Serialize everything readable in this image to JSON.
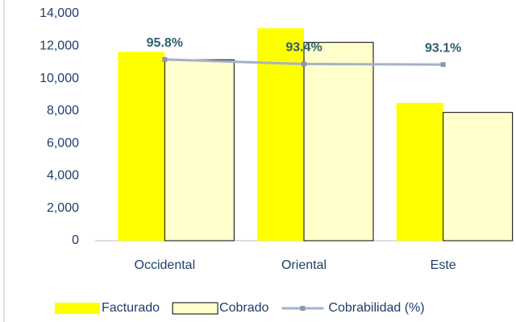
{
  "chart_data": {
    "type": "bar",
    "categories": [
      "Occidental",
      "Oriental",
      "Este"
    ],
    "series": [
      {
        "name": "Facturado",
        "color": "#ffff00",
        "values": [
          11650,
          13100,
          8500
        ]
      },
      {
        "name": "Cobrado",
        "color": "#ffffcc",
        "values": [
          11160,
          12230,
          7910
        ]
      },
      {
        "name": "Cobrabilidad (%)",
        "color": "#a6b0cc",
        "axis": "y2",
        "type": "line",
        "values": [
          95.8,
          93.4,
          93.1
        ],
        "value_labels": [
          "95.8%",
          "93.4%",
          "93.1%"
        ]
      }
    ],
    "ylim": [
      0,
      14000
    ],
    "yticks": [
      0,
      {
        "value": 2000,
        "label": "2,000"
      },
      {
        "value": 4000,
        "label": "4,000"
      },
      {
        "value": 6000,
        "label": "6,000"
      },
      {
        "value": 8000,
        "label": "8,000"
      },
      {
        "value": 10000,
        "label": "10,000"
      },
      {
        "value": 12000,
        "label": "12,000"
      },
      {
        "value": 14000,
        "label": "14,000"
      }
    ],
    "y2lim": [
      0,
      120
    ],
    "legend": "bottom"
  }
}
